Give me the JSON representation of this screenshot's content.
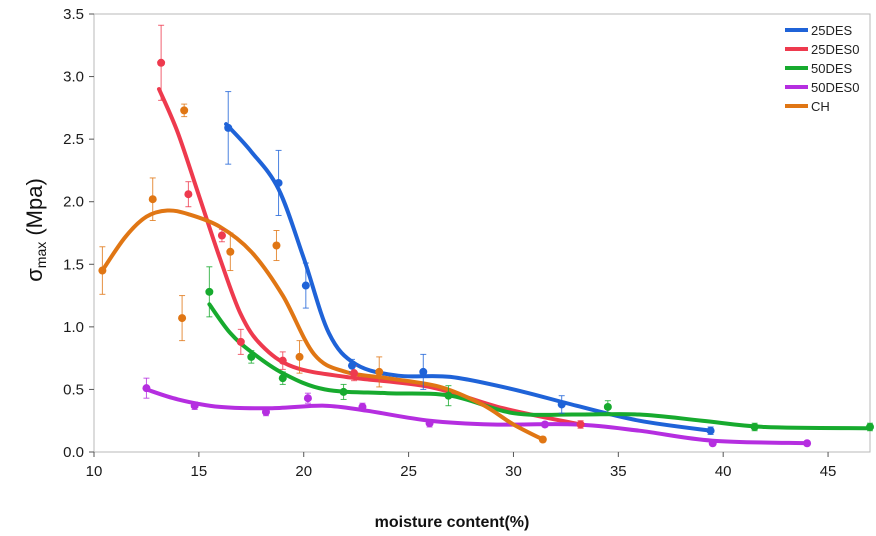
{
  "chart_data": {
    "type": "scatter",
    "title": "",
    "xlabel": "moisture content(%)",
    "ylabel_main": "σ",
    "ylabel_sub": "max",
    "ylabel_unit": " (Mpa)",
    "xlim": [
      10,
      47
    ],
    "ylim": [
      0,
      3.5
    ],
    "xticks": [
      "10",
      "15",
      "20",
      "25",
      "30",
      "35",
      "40",
      "45"
    ],
    "xtick_values": [
      10,
      15,
      20,
      25,
      30,
      35,
      40,
      45
    ],
    "yticks": [
      "0.0",
      "0.5",
      "1.0",
      "1.5",
      "2.0",
      "2.5",
      "3.0",
      "3.5"
    ],
    "ytick_values": [
      0,
      0.5,
      1.0,
      1.5,
      2.0,
      2.5,
      3.0,
      3.5
    ],
    "grid": false,
    "legend_position": "top-right",
    "series": [
      {
        "name": "25DES",
        "color": "#1f63d8",
        "points": [
          [
            16.4,
            2.59
          ],
          [
            18.8,
            2.15
          ],
          [
            20.1,
            1.33
          ],
          [
            22.3,
            0.69
          ],
          [
            25.7,
            0.64
          ],
          [
            32.3,
            0.38
          ],
          [
            39.4,
            0.17
          ]
        ],
        "errors": [
          0.29,
          0.26,
          0.18,
          0.05,
          0.14,
          0.07,
          0.03
        ],
        "curve": [
          [
            16.3,
            2.62
          ],
          [
            17.5,
            2.4
          ],
          [
            18.8,
            2.1
          ],
          [
            20.0,
            1.55
          ],
          [
            21.2,
            0.95
          ],
          [
            22.5,
            0.7
          ],
          [
            24.5,
            0.61
          ],
          [
            27.0,
            0.6
          ],
          [
            30.0,
            0.5
          ],
          [
            33.0,
            0.37
          ],
          [
            36.0,
            0.25
          ],
          [
            39.4,
            0.17
          ]
        ]
      },
      {
        "name": "25DES0",
        "color": "#ee3a4e",
        "points": [
          [
            13.2,
            3.11
          ],
          [
            14.5,
            2.06
          ],
          [
            16.1,
            1.73
          ],
          [
            17.0,
            0.88
          ],
          [
            19.0,
            0.73
          ],
          [
            22.4,
            0.63
          ],
          [
            33.2,
            0.22
          ]
        ],
        "errors": [
          0.3,
          0.1,
          0.05,
          0.1,
          0.07,
          0.06,
          0.03
        ],
        "curve": [
          [
            13.1,
            2.9
          ],
          [
            14.0,
            2.55
          ],
          [
            15.0,
            2.05
          ],
          [
            16.0,
            1.55
          ],
          [
            17.0,
            1.1
          ],
          [
            18.0,
            0.85
          ],
          [
            19.5,
            0.68
          ],
          [
            22.0,
            0.6
          ],
          [
            26.0,
            0.52
          ],
          [
            29.5,
            0.35
          ],
          [
            33.2,
            0.22
          ]
        ]
      },
      {
        "name": "50DES",
        "color": "#17aa2e",
        "points": [
          [
            15.5,
            1.28
          ],
          [
            17.5,
            0.76
          ],
          [
            19.0,
            0.59
          ],
          [
            21.9,
            0.48
          ],
          [
            26.9,
            0.45
          ],
          [
            34.5,
            0.36
          ],
          [
            41.5,
            0.2
          ],
          [
            47.0,
            0.2
          ]
        ],
        "errors": [
          0.2,
          0.05,
          0.05,
          0.06,
          0.08,
          0.05,
          0.03,
          0.03
        ],
        "curve": [
          [
            15.5,
            1.18
          ],
          [
            16.5,
            0.95
          ],
          [
            17.5,
            0.8
          ],
          [
            19.0,
            0.63
          ],
          [
            21.0,
            0.5
          ],
          [
            24.0,
            0.47
          ],
          [
            27.0,
            0.45
          ],
          [
            30.0,
            0.31
          ],
          [
            33.0,
            0.3
          ],
          [
            36.0,
            0.3
          ],
          [
            39.0,
            0.25
          ],
          [
            42.0,
            0.2
          ],
          [
            47.0,
            0.19
          ]
        ]
      },
      {
        "name": "50DES0",
        "color": "#b52ee0",
        "points": [
          [
            12.5,
            0.51
          ],
          [
            14.8,
            0.37
          ],
          [
            18.2,
            0.32
          ],
          [
            20.2,
            0.43
          ],
          [
            22.8,
            0.36
          ],
          [
            26.0,
            0.23
          ],
          [
            31.5,
            0.22
          ],
          [
            39.5,
            0.07
          ],
          [
            44.0,
            0.07
          ]
        ],
        "errors": [
          0.08,
          0.03,
          0.03,
          0.04,
          0.03,
          0.03,
          0.02,
          0.01,
          0.01
        ],
        "curve": [
          [
            12.5,
            0.5
          ],
          [
            14.0,
            0.42
          ],
          [
            16.0,
            0.36
          ],
          [
            18.5,
            0.35
          ],
          [
            21.0,
            0.37
          ],
          [
            23.0,
            0.33
          ],
          [
            26.0,
            0.25
          ],
          [
            29.0,
            0.22
          ],
          [
            33.0,
            0.22
          ],
          [
            36.0,
            0.17
          ],
          [
            39.5,
            0.09
          ],
          [
            44.0,
            0.07
          ]
        ]
      },
      {
        "name": "CH",
        "color": "#e07614",
        "points": [
          [
            10.4,
            1.45
          ],
          [
            12.8,
            2.02
          ],
          [
            14.2,
            1.07
          ],
          [
            14.3,
            2.73
          ],
          [
            16.5,
            1.6
          ],
          [
            18.7,
            1.65
          ],
          [
            19.8,
            0.76
          ],
          [
            23.6,
            0.64
          ],
          [
            31.4,
            0.1
          ]
        ],
        "errors": [
          0.19,
          0.17,
          0.18,
          0.05,
          0.15,
          0.12,
          0.13,
          0.12,
          0.02
        ],
        "curve": [
          [
            10.4,
            1.45
          ],
          [
            11.5,
            1.72
          ],
          [
            12.5,
            1.88
          ],
          [
            13.5,
            1.93
          ],
          [
            14.5,
            1.9
          ],
          [
            16.0,
            1.8
          ],
          [
            17.5,
            1.6
          ],
          [
            19.0,
            1.25
          ],
          [
            20.5,
            0.78
          ],
          [
            22.0,
            0.64
          ],
          [
            24.0,
            0.59
          ],
          [
            26.5,
            0.52
          ],
          [
            28.5,
            0.38
          ],
          [
            30.0,
            0.22
          ],
          [
            31.4,
            0.1
          ]
        ]
      }
    ]
  }
}
